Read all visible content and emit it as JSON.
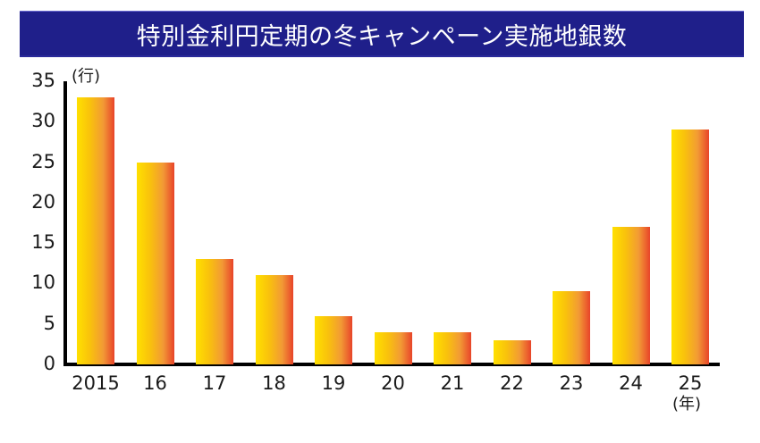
{
  "header": {
    "title": "特別金利円定期の冬キャンペーン実施地銀数",
    "background_color": "#1f1f8a",
    "text_color": "#ffffff"
  },
  "axes": {
    "y_unit": "(行)",
    "x_unit": "(年)",
    "y_ticks": [
      "35",
      "30",
      "25",
      "20",
      "15",
      "10",
      "5",
      "0"
    ],
    "x_ticks": [
      "2015",
      "16",
      "17",
      "18",
      "19",
      "20",
      "21",
      "22",
      "23",
      "24",
      "25"
    ]
  },
  "chart_data": {
    "type": "bar",
    "title": "特別金利円定期の冬キャンペーン実施地銀数",
    "xlabel": "(年)",
    "ylabel": "(行)",
    "categories": [
      "2015",
      "16",
      "17",
      "18",
      "19",
      "20",
      "21",
      "22",
      "23",
      "24",
      "25"
    ],
    "values": [
      33,
      25,
      13,
      11,
      6,
      4,
      4,
      3,
      9,
      17,
      29
    ],
    "ylim": [
      0,
      35
    ],
    "yticks": [
      0,
      5,
      10,
      15,
      20,
      25,
      30,
      35
    ],
    "grid": false,
    "legend": null,
    "bar_gradient": [
      "#ffe000",
      "#f9c20c",
      "#f29a35",
      "#e8442a"
    ]
  }
}
